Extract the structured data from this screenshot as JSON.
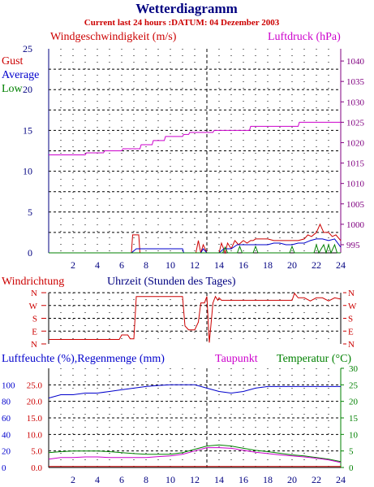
{
  "header": {
    "title": "Wetterdiagramm",
    "subtitle": "Current last 24 hours :DATUM: 04 Dezember 2003"
  },
  "colors": {
    "title": "#000080",
    "subtitle": "#cc0000",
    "gust": "#cc0000",
    "average": "#0000cc",
    "low": "#008000",
    "pressure": "#cc00cc",
    "humidity": "#0000cc",
    "rain": "#cc0000",
    "dewpoint": "#cc00cc",
    "temperature": "#008000",
    "axis_left": "#000080",
    "axis_right_panel1": "#800080",
    "axis_right_panel3": "#008000",
    "direction": "#cc0000"
  },
  "chart_data": [
    {
      "type": "line",
      "id": "wind_pressure",
      "title": "Windgeschwindigkeit (m/s)",
      "title_right": "Luftdruck (hPa)",
      "legend": [
        "Gust",
        "Average",
        "Low"
      ],
      "xlim": [
        0,
        24
      ],
      "ylim": [
        0,
        25
      ],
      "ylim_right": [
        993,
        1043
      ],
      "x_ticks": [
        2,
        4,
        6,
        8,
        10,
        12,
        14,
        16,
        18,
        20,
        22,
        24
      ],
      "y_ticks": [
        0,
        5,
        10,
        15,
        20,
        25
      ],
      "y_ticks_right": [
        995,
        1000,
        1005,
        1010,
        1015,
        1020,
        1025,
        1030,
        1035,
        1040
      ],
      "grid": true,
      "marker_x": 13,
      "series": [
        {
          "name": "Gust",
          "x": [
            0,
            6.8,
            6.9,
            7.4,
            7.5,
            11,
            12.1,
            12.3,
            12.5,
            12.7,
            13,
            14,
            14.2,
            14.5,
            14.7,
            15,
            15.3,
            15.6,
            16,
            16.3,
            16.6,
            16.8,
            17,
            17.5,
            18,
            18.5,
            19,
            19.5,
            20,
            20.5,
            21,
            21.3,
            21.6,
            22,
            22.3,
            22.6,
            23,
            23.3,
            23.6,
            24
          ],
          "y": [
            0,
            0,
            2.2,
            2.2,
            0,
            0,
            0,
            1.5,
            0,
            1,
            0,
            0,
            1.2,
            0,
            1.2,
            0.5,
            1.5,
            1,
            1.5,
            1.2,
            1.5,
            1.5,
            1.7,
            1.7,
            1.7,
            1.5,
            1.5,
            1.5,
            1.5,
            1.5,
            1.7,
            2.2,
            2,
            2.5,
            3.5,
            2.5,
            2.5,
            2,
            2.2,
            1.5
          ]
        },
        {
          "name": "Average",
          "x": [
            0,
            6.8,
            7.2,
            11,
            11.1,
            12.5,
            12.7,
            13,
            14,
            14.4,
            15,
            15.5,
            16,
            16.5,
            17,
            17.5,
            18,
            18.5,
            19,
            19.5,
            20,
            20.5,
            21,
            21.5,
            22,
            22.5,
            23,
            23.5,
            24
          ],
          "y": [
            0,
            0,
            0.5,
            0.5,
            0,
            0,
            0.5,
            0,
            0,
            0.5,
            0.5,
            1,
            1,
            1,
            1,
            1,
            1,
            1.2,
            1.2,
            1,
            1,
            1.2,
            1.2,
            1.5,
            1.7,
            1.7,
            1.5,
            1.7,
            0.7
          ]
        },
        {
          "name": "Low",
          "x": [
            0,
            14.3,
            14.5,
            14.7,
            15.5,
            15.7,
            15.9,
            16.8,
            17,
            17.2,
            19.8,
            20,
            20.2,
            21.8,
            22,
            22.2,
            22.6,
            22.8,
            23,
            23.2,
            23.5,
            23.7,
            24
          ],
          "y": [
            0,
            0,
            0.7,
            0,
            0,
            0.8,
            0,
            0,
            0.8,
            0,
            0,
            0.8,
            0,
            0,
            1,
            0,
            1,
            0,
            1,
            0,
            1,
            0,
            0
          ]
        },
        {
          "name": "Luftdruck",
          "axis": "right",
          "x": [
            0,
            3,
            3.1,
            4.5,
            4.6,
            6,
            6.1,
            7.5,
            7.6,
            8.5,
            8.6,
            9.5,
            9.6,
            11,
            11.1,
            11.5,
            11.6,
            13.5,
            13.6,
            16.5,
            16.6,
            20.5,
            20.6,
            24
          ],
          "y": [
            1017,
            1017,
            1017.5,
            1017.5,
            1018,
            1018,
            1018.5,
            1018.5,
            1019.5,
            1019.5,
            1020.5,
            1020.5,
            1021.5,
            1021.5,
            1022,
            1022,
            1022.5,
            1022.5,
            1023,
            1023,
            1024,
            1024,
            1025,
            1025
          ]
        }
      ]
    },
    {
      "type": "line",
      "id": "wind_direction",
      "title": "Windrichtung",
      "xlabel": "Uhrzeit (Stunden des Tages)",
      "xlim": [
        0,
        24
      ],
      "ylim": [
        0,
        4
      ],
      "y_categories": [
        "N",
        "E",
        "S",
        "W",
        "N"
      ],
      "grid": true,
      "marker_x": 13,
      "series": [
        {
          "name": "Windrichtung",
          "x": [
            0,
            5.8,
            6,
            6.5,
            6.7,
            7,
            7.2,
            11,
            11.2,
            11.5,
            12,
            12.3,
            12.5,
            12.8,
            13,
            13.2,
            13.5,
            13.7,
            13.9,
            14,
            14.2,
            20,
            20.2,
            20.5,
            21,
            21.5,
            22,
            22.5,
            23,
            23.5,
            24
          ],
          "y": [
            0.35,
            0.35,
            0.7,
            0.7,
            0.4,
            0.4,
            3.7,
            3.7,
            1.4,
            1.1,
            1.1,
            1.7,
            3.2,
            3.2,
            3.7,
            0.1,
            3.2,
            3.7,
            3.4,
            3.6,
            3.4,
            3.4,
            3.95,
            3.6,
            3.6,
            3.35,
            3.6,
            3.6,
            3.35,
            3.6,
            3.5
          ]
        }
      ]
    },
    {
      "type": "line",
      "id": "humidity_rain_dew_temp",
      "title": "Luftfeuchte (%),Regenmenge (mm)",
      "title_dewpoint": "Taupunkt",
      "title_right": "Temperatur (°C)",
      "xlim": [
        0,
        24
      ],
      "ylim": [
        0,
        30
      ],
      "y_ticks_humidity": [
        0,
        20,
        40,
        60,
        80,
        100
      ],
      "y_ticks_rain": [
        "0.0",
        "5.0",
        "10.0",
        "15.0",
        "20.0",
        "25.0"
      ],
      "y_ticks_right": [
        0,
        5,
        10,
        15,
        20,
        25,
        30
      ],
      "x_ticks": [
        2,
        4,
        6,
        8,
        10,
        12,
        14,
        16,
        18,
        20,
        22,
        24
      ],
      "grid": true,
      "marker_x": 13,
      "series": [
        {
          "name": "Luftfeuchte",
          "x": [
            0,
            1,
            2,
            3,
            4,
            5,
            6,
            7,
            8,
            9,
            10,
            11,
            12,
            13,
            14,
            15,
            16,
            17,
            18,
            19,
            20,
            21,
            22,
            23,
            24
          ],
          "y": [
            21,
            22,
            22,
            22.5,
            22.5,
            23,
            23.5,
            24,
            24.5,
            24.8,
            25,
            25,
            25,
            24,
            23,
            22.5,
            23,
            24,
            24.5,
            24.5,
            24.5,
            24.5,
            24.5,
            24.5,
            24.5
          ]
        },
        {
          "name": "Temperatur",
          "x": [
            0,
            1,
            2,
            3,
            4,
            5,
            6,
            7,
            8,
            9,
            10,
            11,
            12,
            13,
            14,
            15,
            16,
            17,
            18,
            19,
            20,
            21,
            22,
            23,
            24
          ],
          "y": [
            4.5,
            4.8,
            5,
            5,
            5,
            4.8,
            4.5,
            4.2,
            4,
            4,
            4,
            4.5,
            5.5,
            6.5,
            6.8,
            6.5,
            5.8,
            5.2,
            4.8,
            4.3,
            3.8,
            3.5,
            3,
            2.5,
            1.8
          ]
        },
        {
          "name": "Taupunkt",
          "x": [
            0,
            1,
            2,
            3,
            4,
            5,
            6,
            7,
            8,
            9,
            10,
            11,
            12,
            13,
            14,
            15,
            16,
            17,
            18,
            19,
            20,
            21,
            22,
            23,
            24
          ],
          "y": [
            2.5,
            3,
            3,
            3.2,
            3.2,
            3,
            3,
            3,
            3,
            3.3,
            3.5,
            4,
            5,
            6,
            6,
            5.8,
            5.2,
            4.6,
            4.2,
            3.8,
            3.5,
            3.2,
            2.8,
            2.3,
            1.5
          ]
        },
        {
          "name": "Regenmenge",
          "x": [
            0,
            24
          ],
          "y": [
            0.3,
            0.3
          ]
        }
      ]
    }
  ]
}
